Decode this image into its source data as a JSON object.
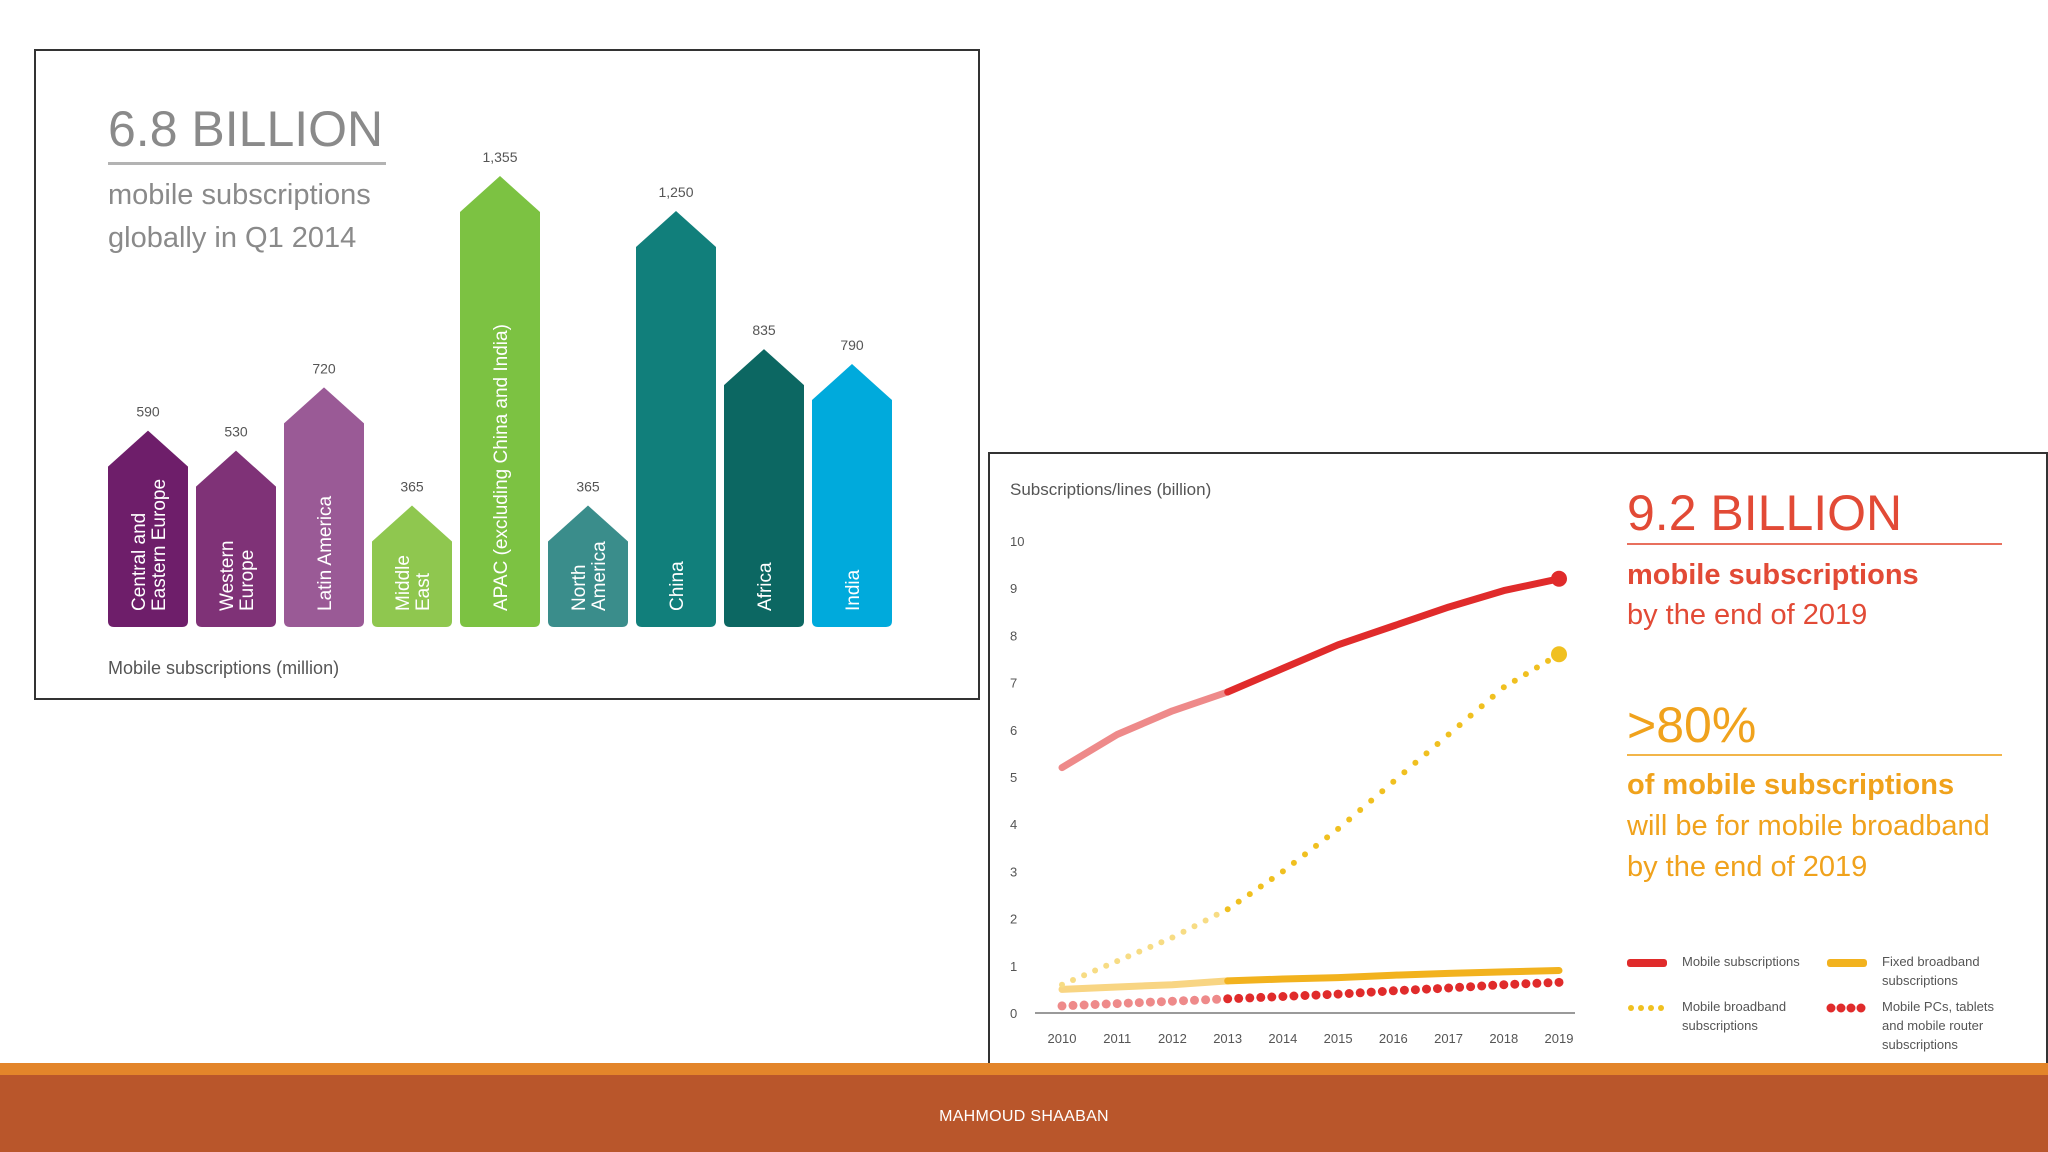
{
  "slide": {
    "footer": "MAHMOUD SHAABAN"
  },
  "chart_data": [
    {
      "type": "bar",
      "title": "6.8 BILLION",
      "subtitle_line1": "mobile subscriptions",
      "subtitle_line2": "globally in Q1 2014",
      "xlabel": "Mobile subscriptions (million)",
      "ylim": [
        0,
        1355
      ],
      "categories": [
        {
          "label_lines": [
            "Central and",
            "Eastern Europe"
          ],
          "value": 590,
          "value_label": "590",
          "color": "#6e1e6a"
        },
        {
          "label_lines": [
            "Western",
            "Europe"
          ],
          "value": 530,
          "value_label": "530",
          "color": "#7f3277"
        },
        {
          "label_lines": [
            "Latin America"
          ],
          "value": 720,
          "value_label": "720",
          "color": "#9a5a96"
        },
        {
          "label_lines": [
            "Middle",
            "East"
          ],
          "value": 365,
          "value_label": "365",
          "color": "#8fc74f"
        },
        {
          "label_lines": [
            "APAC (excluding China and India)"
          ],
          "value": 1355,
          "value_label": "1,355",
          "color": "#7cc242"
        },
        {
          "label_lines": [
            "North",
            "America"
          ],
          "value": 365,
          "value_label": "365",
          "color": "#3a8d8b"
        },
        {
          "label_lines": [
            "China"
          ],
          "value": 1250,
          "value_label": "1,250",
          "color": "#117f7b"
        },
        {
          "label_lines": [
            "Africa"
          ],
          "value": 835,
          "value_label": "835",
          "color": "#0c6762"
        },
        {
          "label_lines": [
            "India"
          ],
          "value": 790,
          "value_label": "790",
          "color": "#00aadc"
        }
      ]
    },
    {
      "type": "line",
      "ylabel": "Subscriptions/lines (billion)",
      "ylim": [
        0,
        10
      ],
      "yticks": [
        "0",
        "1",
        "2",
        "3",
        "4",
        "5",
        "6",
        "7",
        "8",
        "9",
        "10"
      ],
      "x": [
        "2010",
        "2011",
        "2012",
        "2013",
        "2014",
        "2015",
        "2016",
        "2017",
        "2018",
        "2019"
      ],
      "forecast_start": "2013",
      "series": [
        {
          "name": "Mobile subscriptions",
          "style": "solid",
          "color": "#e02b2b",
          "values": [
            5.2,
            5.9,
            6.4,
            6.8,
            7.3,
            7.8,
            8.2,
            8.6,
            8.95,
            9.2
          ]
        },
        {
          "name": "Fixed broadband subscriptions",
          "style": "solid",
          "color": "#f2b21e",
          "values": [
            0.5,
            0.55,
            0.6,
            0.68,
            0.72,
            0.75,
            0.8,
            0.84,
            0.87,
            0.9
          ]
        },
        {
          "name": "Mobile broadband subscriptions",
          "style": "dotted",
          "color": "#f0c020",
          "values": [
            0.6,
            1.1,
            1.6,
            2.2,
            3.0,
            3.9,
            4.9,
            5.9,
            6.9,
            7.6
          ]
        },
        {
          "name": "Mobile PCs, tablets and mobile router subscriptions",
          "style": "dotted",
          "color": "#e02b2b",
          "values": [
            0.15,
            0.2,
            0.25,
            0.3,
            0.35,
            0.4,
            0.47,
            0.53,
            0.6,
            0.65
          ]
        }
      ],
      "legend": {
        "placement": "bottom-right",
        "items": [
          {
            "lines": [
              "Mobile subscriptions"
            ],
            "style": "solid",
            "color": "#e02b2b"
          },
          {
            "lines": [
              "Fixed broadband",
              "subscriptions"
            ],
            "style": "solid",
            "color": "#f2b21e"
          },
          {
            "lines": [
              "Mobile broadband",
              "subscriptions"
            ],
            "style": "dotted",
            "color": "#f0c020"
          },
          {
            "lines": [
              "Mobile PCs, tablets",
              "and mobile router",
              "subscriptions"
            ],
            "style": "dotted",
            "color": "#e02b2b"
          }
        ]
      },
      "callouts": {
        "big_number": "9.2 BILLION",
        "big_number_color": "#e24a36",
        "line1": "mobile subscriptions",
        "line2": "by the end of 2019",
        "percent": ">80%",
        "percent_color": "#f0a21c",
        "pct_line1": "of mobile subscriptions",
        "pct_line2": "will be for mobile broadband",
        "pct_line3": "by the end of 2019"
      }
    }
  ]
}
